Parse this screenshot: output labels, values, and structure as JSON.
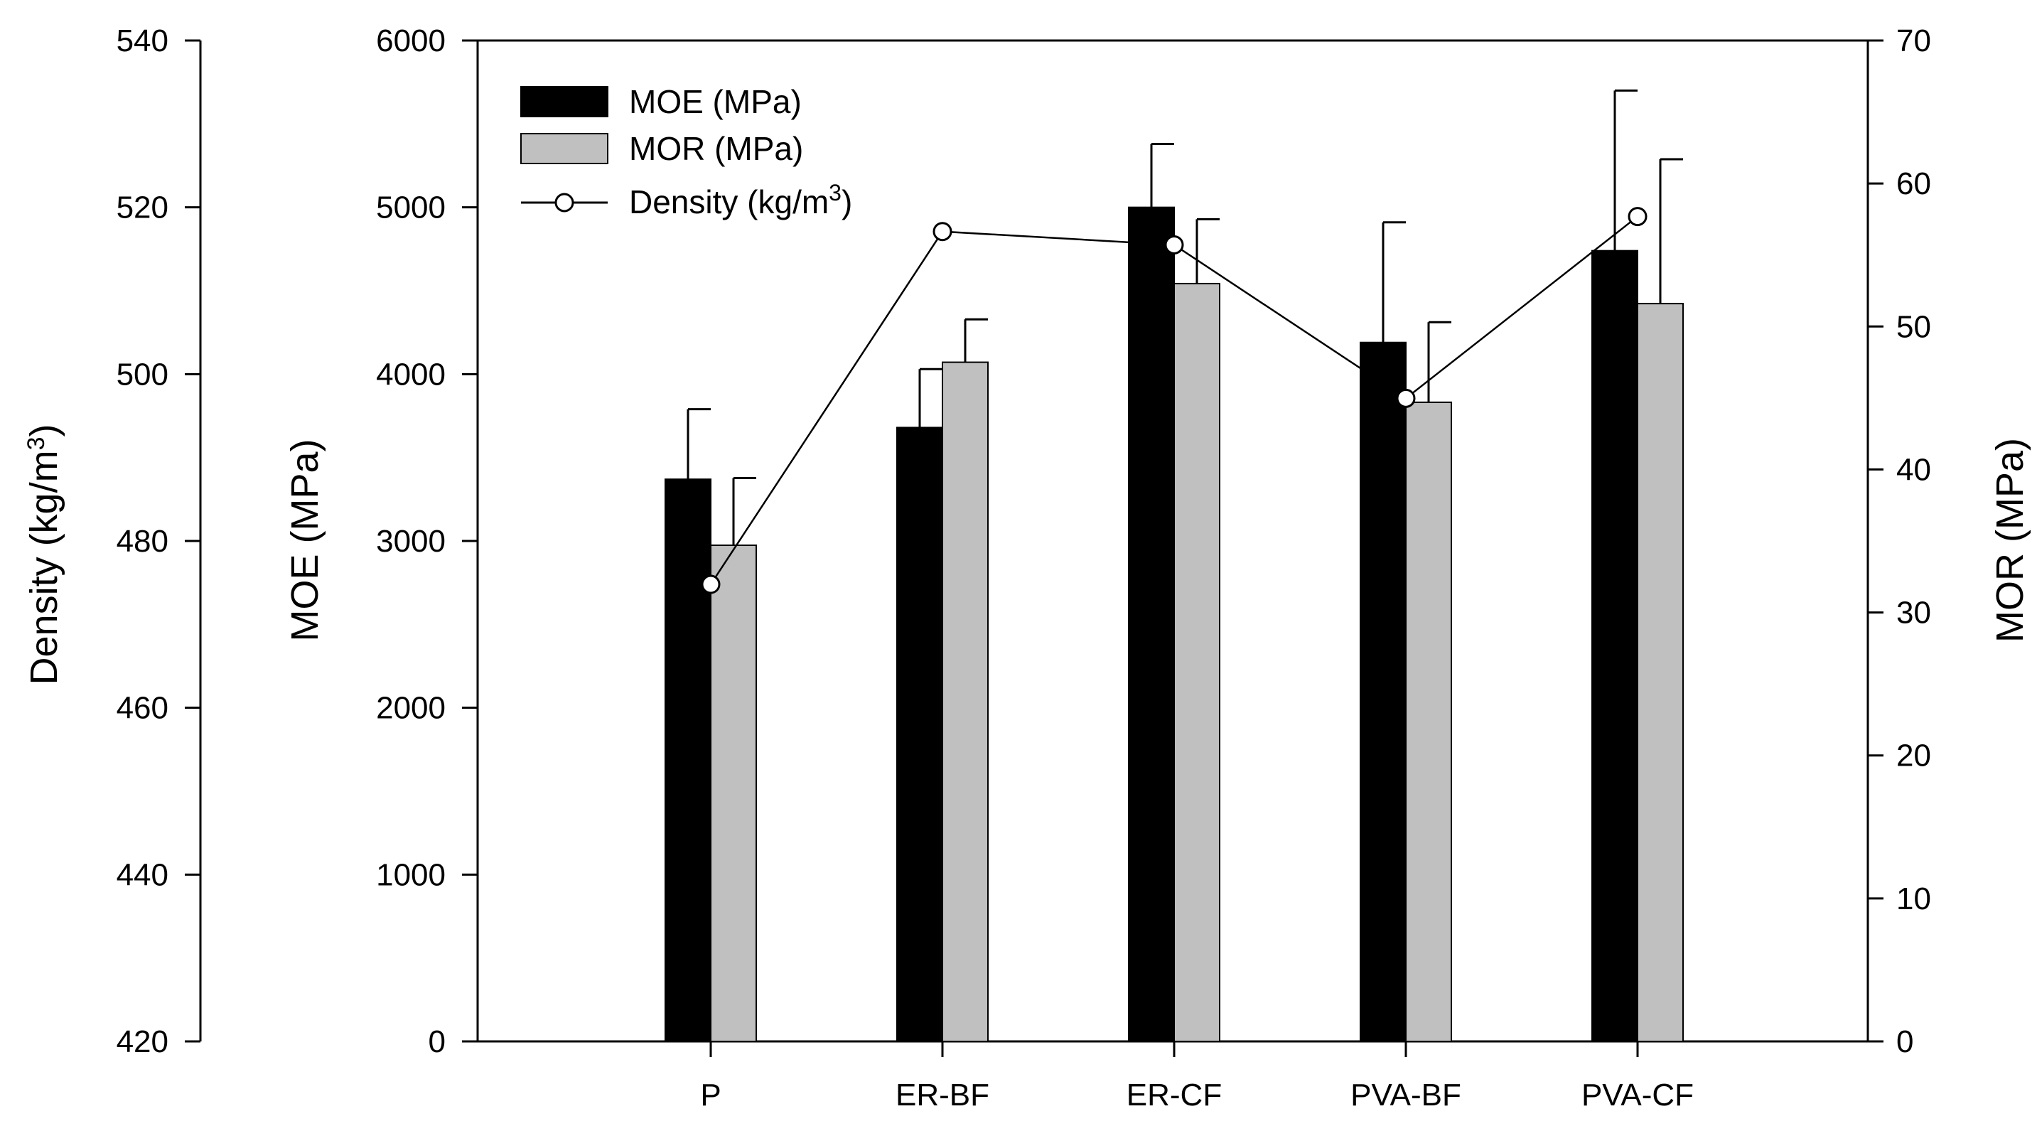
{
  "chart_data": {
    "type": "bar",
    "categories": [
      "P",
      "ER-BF",
      "ER-CF",
      "PVA-BF",
      "PVA-CF"
    ],
    "series": [
      {
        "name": "MOE (MPa)",
        "kind": "bar",
        "axis": "moe",
        "color": "#000000",
        "values": [
          3370,
          3680,
          5000,
          4190,
          4740
        ],
        "errors": [
          420,
          350,
          380,
          720,
          960
        ]
      },
      {
        "name": "MOR (MPa)",
        "kind": "bar",
        "axis": "mor",
        "color": "#c0c0c0",
        "values": [
          34.7,
          47.5,
          53.0,
          44.7,
          51.6
        ],
        "errors": [
          4.7,
          3.0,
          4.5,
          5.6,
          10.1
        ]
      },
      {
        "name": "Density (kg/m3)",
        "kind": "line",
        "axis": "density",
        "color": "#000000",
        "values": [
          474.8,
          517.1,
          515.5,
          497.1,
          518.9
        ]
      }
    ],
    "axes": {
      "density": {
        "title": "Density (kg/m",
        "title_sup": "3",
        "title_close": ")",
        "min": 420,
        "max": 540,
        "ticks": [
          "420",
          "440",
          "460",
          "480",
          "500",
          "520",
          "540"
        ]
      },
      "moe": {
        "title": "MOE (MPa)",
        "min": 0,
        "max": 6000,
        "ticks": [
          "0",
          "1000",
          "2000",
          "3000",
          "4000",
          "5000",
          "6000"
        ]
      },
      "mor": {
        "title": "MOR (MPa)",
        "min": 0,
        "max": 70,
        "ticks": [
          "0",
          "10",
          "20",
          "30",
          "40",
          "50",
          "60",
          "70"
        ]
      }
    },
    "legend": {
      "position": "top-left",
      "items": [
        {
          "label": "MOE (MPa)"
        },
        {
          "label": "MOR (MPa)"
        },
        {
          "label": "Density (kg/m",
          "sup": "3",
          "close": ")"
        }
      ]
    }
  }
}
